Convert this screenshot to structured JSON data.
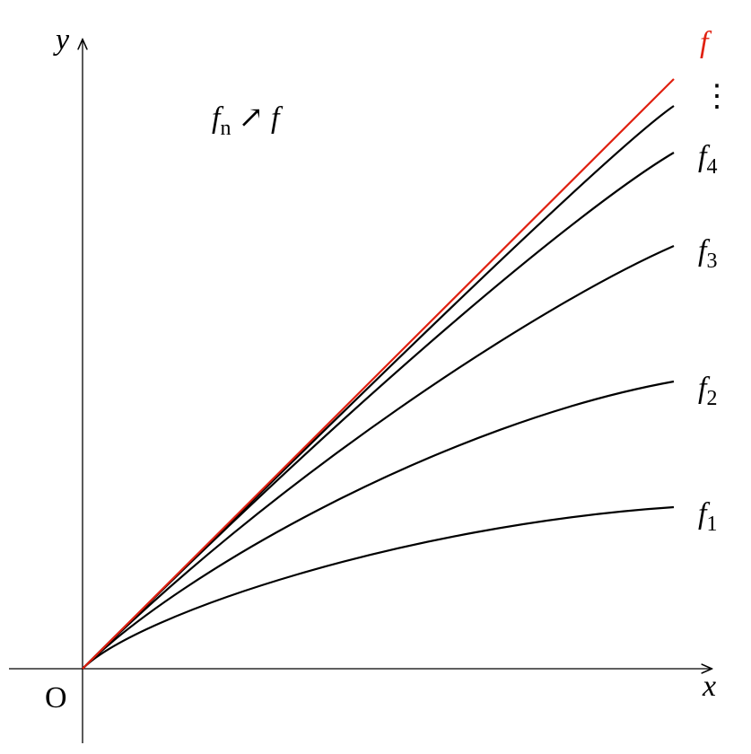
{
  "axes": {
    "x": "x",
    "y": "y",
    "origin": "O"
  },
  "limit_label": "f",
  "ellipsis": "⋮",
  "curve_labels": [
    {
      "name": "f",
      "sub": "4"
    },
    {
      "name": "f",
      "sub": "3"
    },
    {
      "name": "f",
      "sub": "2"
    },
    {
      "name": "f",
      "sub": "1"
    }
  ],
  "annotation": {
    "left": "f",
    "left_sub": "n",
    "arrow": "↗",
    "right": "f"
  }
}
